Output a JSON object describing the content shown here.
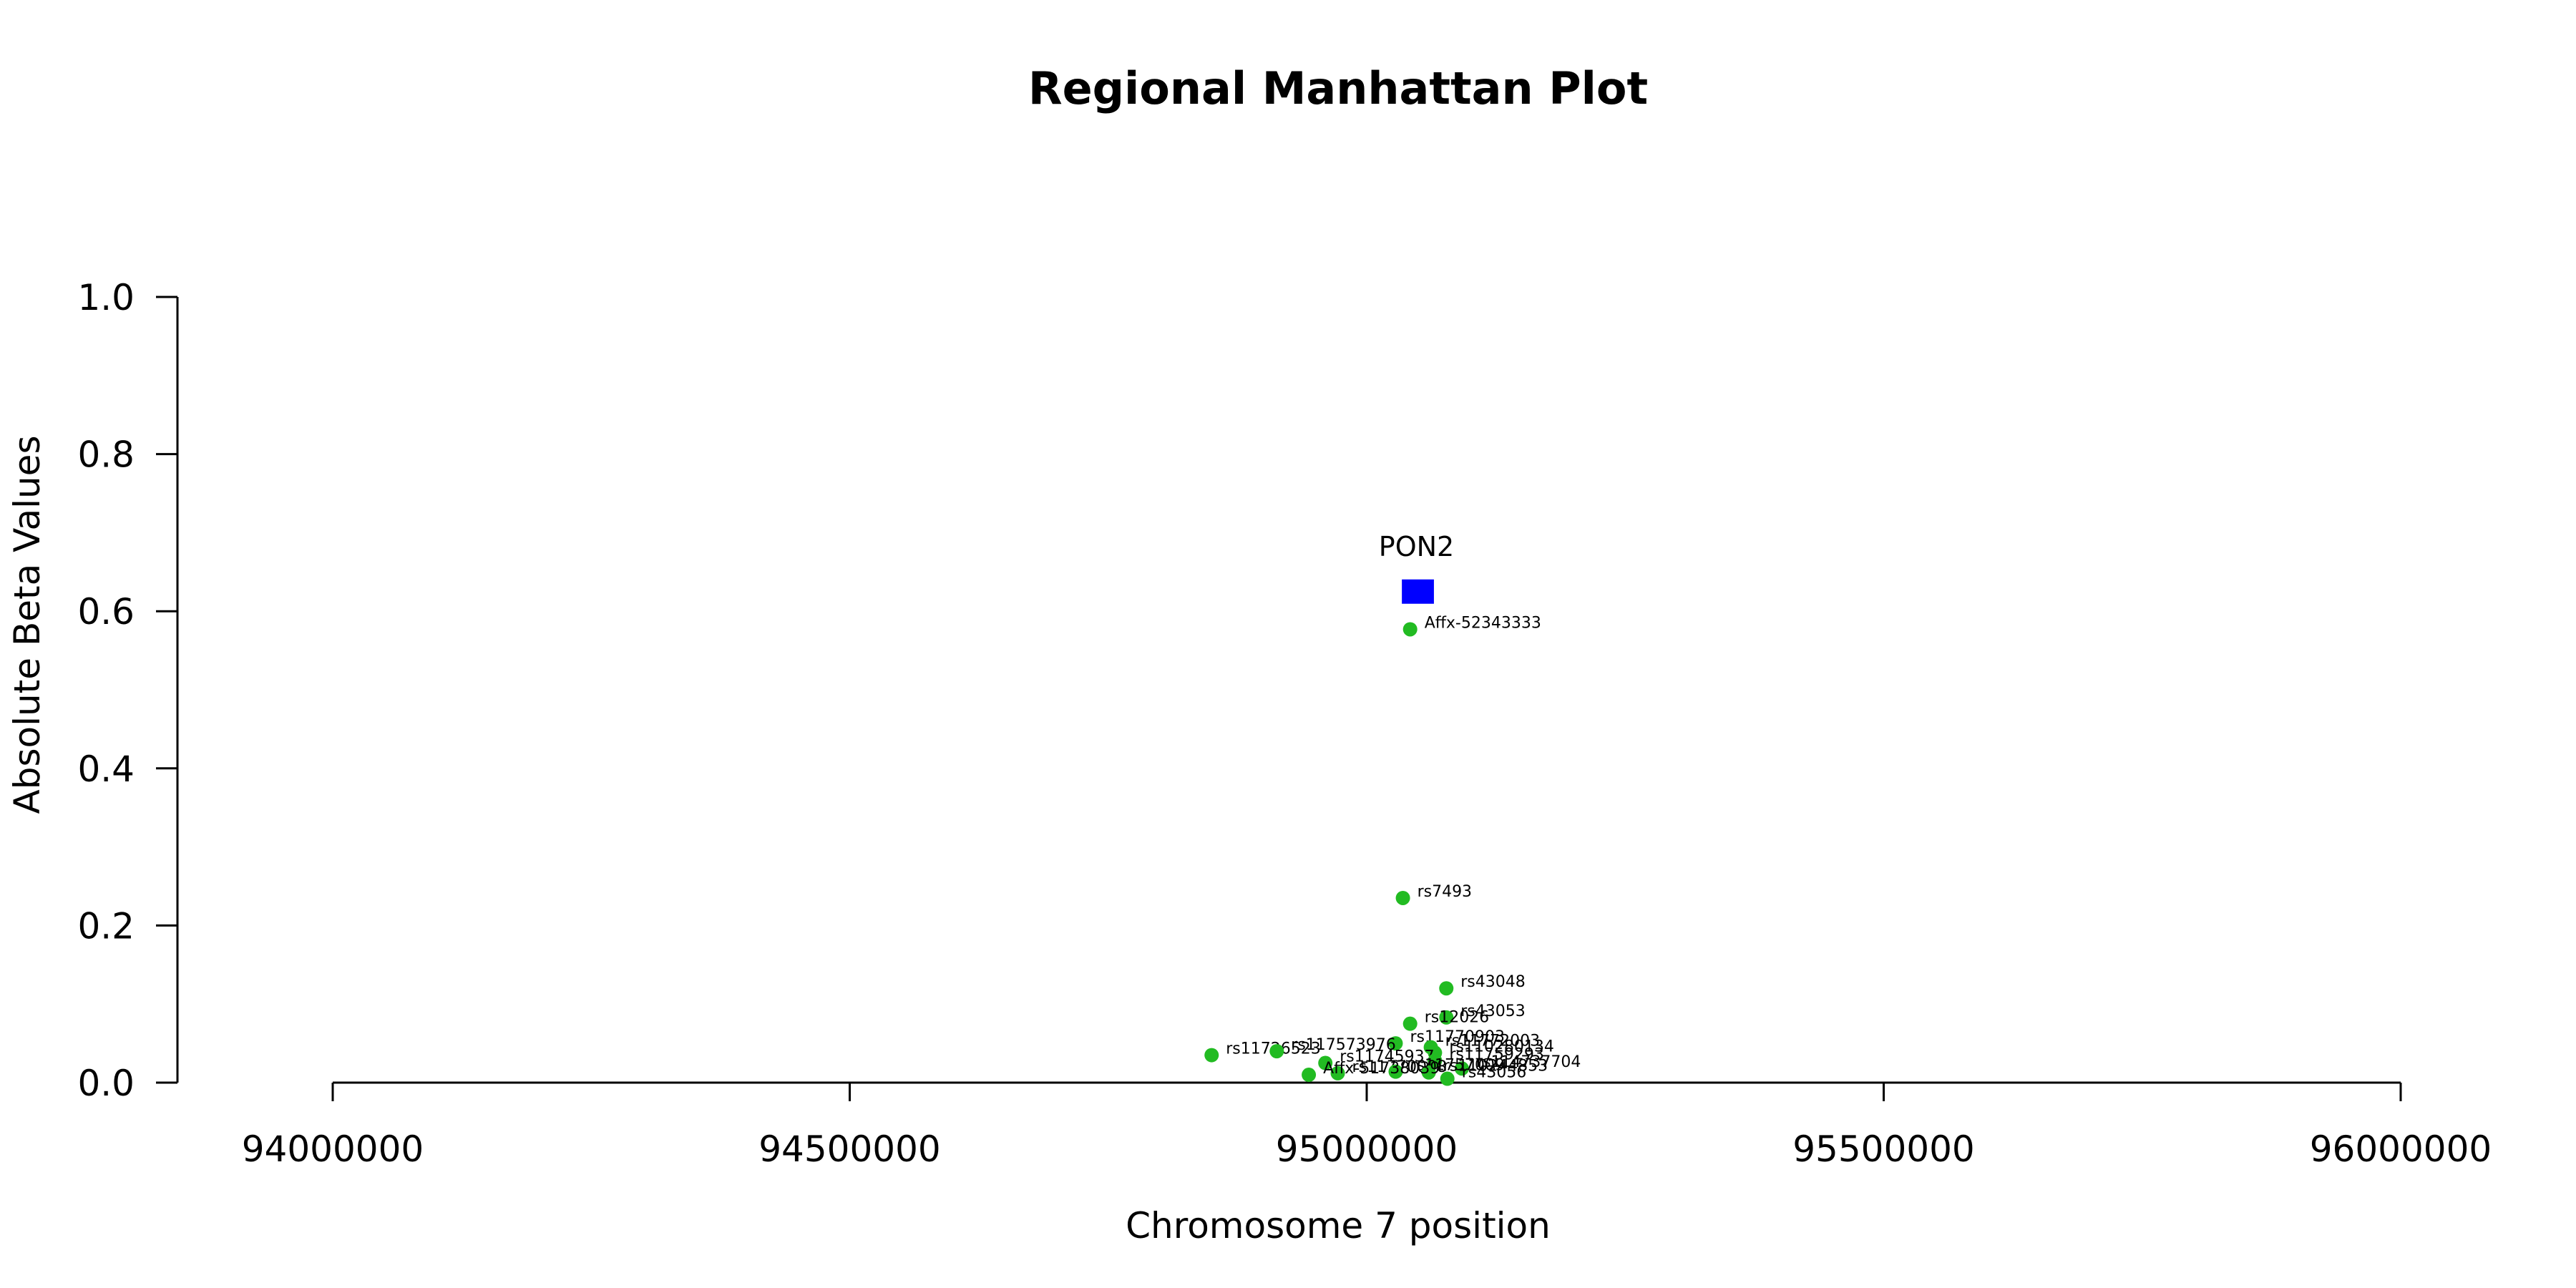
{
  "chart_data": {
    "type": "scatter",
    "title": "Regional Manhattan Plot",
    "xlabel": "Chromosome 7 position",
    "ylabel": "Absolute Beta Values",
    "xlim": [
      94000000,
      96000000
    ],
    "ylim": [
      0,
      1
    ],
    "x_ticks": [
      94000000,
      94500000,
      95000000,
      95500000,
      96000000
    ],
    "x_tick_labels": [
      "94000000",
      "94500000",
      "95000000",
      "95500000",
      "96000000"
    ],
    "y_ticks": [
      0,
      0.2,
      0.4,
      0.6,
      0.8,
      1.0
    ],
    "y_tick_labels": [
      "0.0",
      "0.2",
      "0.4",
      "0.6",
      "0.8",
      "1.0"
    ],
    "grid": false,
    "point_color": "#22bb22",
    "gene_color": "#0000ff",
    "genes": [
      {
        "name": "PON2",
        "start": 95034000,
        "end": 95065000,
        "y": 0.625
      }
    ],
    "points": [
      {
        "label": "Affx-52343333",
        "x": 95042000,
        "y": 0.577
      },
      {
        "label": "rs7493",
        "x": 95035000,
        "y": 0.235
      },
      {
        "label": "rs43048",
        "x": 95077000,
        "y": 0.12
      },
      {
        "label": "rs43053",
        "x": 95077000,
        "y": 0.083
      },
      {
        "label": "rs12026",
        "x": 95042000,
        "y": 0.075
      },
      {
        "label": "rs11770903",
        "x": 95028000,
        "y": 0.05
      },
      {
        "label": "rs11772003",
        "x": 95062000,
        "y": 0.045
      },
      {
        "label": "rs110280134",
        "x": 95066000,
        "y": 0.038
      },
      {
        "label": "rs11726523",
        "x": 94850000,
        "y": 0.035
      },
      {
        "label": "rs117573976",
        "x": 94913000,
        "y": 0.04
      },
      {
        "label": "rs11745937",
        "x": 94960000,
        "y": 0.025
      },
      {
        "label": "rs11759293",
        "x": 95066000,
        "y": 0.028
      },
      {
        "label": "rs114737704",
        "x": 95092000,
        "y": 0.018
      },
      {
        "label": "rs11770008",
        "x": 94972000,
        "y": 0.012
      },
      {
        "label": "rs11757009",
        "x": 95028000,
        "y": 0.014
      },
      {
        "label": "rs110244853",
        "x": 95060000,
        "y": 0.013
      },
      {
        "label": "Affx-51738039",
        "x": 94944000,
        "y": 0.01
      },
      {
        "label": "rs43056",
        "x": 95078000,
        "y": 0.005
      }
    ]
  }
}
